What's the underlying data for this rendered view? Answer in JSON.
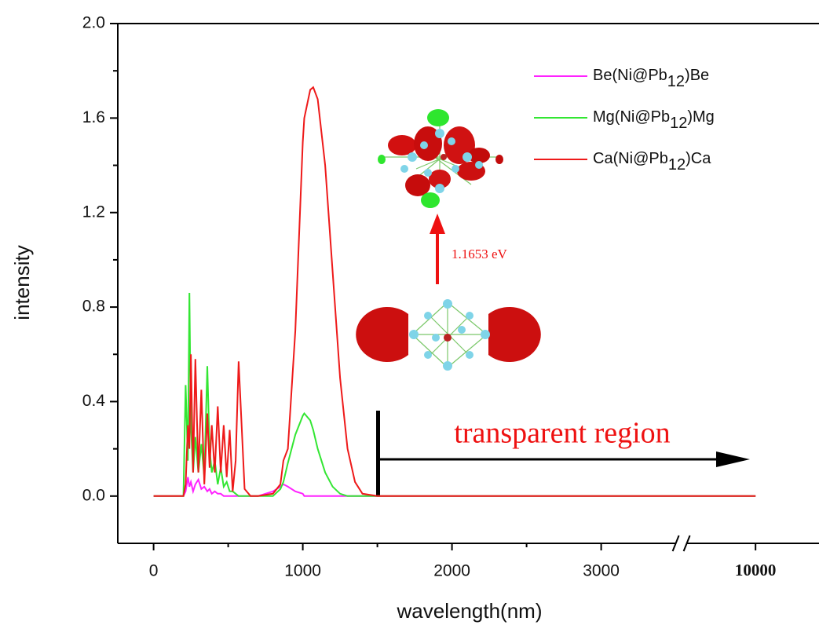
{
  "chart_data": {
    "type": "line",
    "xlabel": "wavelength(nm)",
    "ylabel": "intensity",
    "x": [
      0,
      200,
      215,
      230,
      240,
      250,
      265,
      280,
      300,
      320,
      340,
      360,
      375,
      390,
      410,
      430,
      450,
      470,
      490,
      510,
      530,
      550,
      570,
      590,
      610,
      650,
      700,
      800,
      850,
      870,
      900,
      950,
      1000,
      1010,
      1050,
      1070,
      1100,
      1150,
      1200,
      1250,
      1300,
      1350,
      1400,
      1500,
      2000,
      3000,
      10000
    ],
    "series": [
      {
        "name": "Be(Ni@Pb12)Be",
        "color": "#ff22ff",
        "values": [
          0,
          0,
          0.02,
          0.08,
          0.04,
          0.06,
          0.02,
          0.05,
          0.07,
          0.03,
          0.04,
          0.02,
          0.03,
          0.01,
          0.02,
          0.01,
          0.01,
          0,
          0,
          0,
          0,
          0,
          0,
          0,
          0,
          0,
          0,
          0.02,
          0.04,
          0.05,
          0.04,
          0.02,
          0.01,
          0,
          0,
          0,
          0,
          0,
          0,
          0,
          0,
          0,
          0,
          0,
          0,
          0,
          0
        ]
      },
      {
        "name": "Mg(Ni@Pb12)Mg",
        "color": "#33e633",
        "values": [
          0,
          0,
          0.47,
          0.15,
          0.86,
          0.3,
          0.1,
          0.25,
          0.1,
          0.22,
          0.08,
          0.55,
          0.2,
          0.1,
          0.15,
          0.05,
          0.12,
          0.04,
          0.06,
          0.02,
          0.02,
          0.01,
          0,
          0,
          0,
          0,
          0,
          0,
          0.03,
          0.06,
          0.14,
          0.26,
          0.34,
          0.35,
          0.32,
          0.28,
          0.2,
          0.1,
          0.04,
          0.01,
          0,
          0,
          0,
          0,
          0,
          0,
          0
        ]
      },
      {
        "name": "Ca(Ni@Pb12)Ca",
        "color": "#ee1a1a",
        "values": [
          0,
          0,
          0.05,
          0.3,
          0.2,
          0.6,
          0.1,
          0.58,
          0.1,
          0.45,
          0.05,
          0.35,
          0.12,
          0.3,
          0.1,
          0.38,
          0.1,
          0.3,
          0.08,
          0.28,
          0.02,
          0.15,
          0.57,
          0.3,
          0.03,
          0,
          0,
          0.01,
          0.05,
          0.15,
          0.2,
          0.7,
          1.5,
          1.6,
          1.72,
          1.73,
          1.68,
          1.4,
          0.95,
          0.5,
          0.2,
          0.06,
          0.01,
          0,
          0,
          0,
          0
        ]
      }
    ],
    "xlim": [
      -240,
      16000
    ],
    "xticks": [
      0,
      1000,
      2000,
      3000,
      10000
    ],
    "x_break": 3500,
    "ylim": [
      -0.2,
      2.0
    ],
    "yticks": [
      {
        "value": 0,
        "label": "0.0"
      },
      0.4,
      0.8,
      1.2,
      1.6,
      {
        "value": 2,
        "label": "2.0"
      }
    ],
    "annotations": [
      "1.1653 eV",
      "transparent region"
    ]
  }
}
